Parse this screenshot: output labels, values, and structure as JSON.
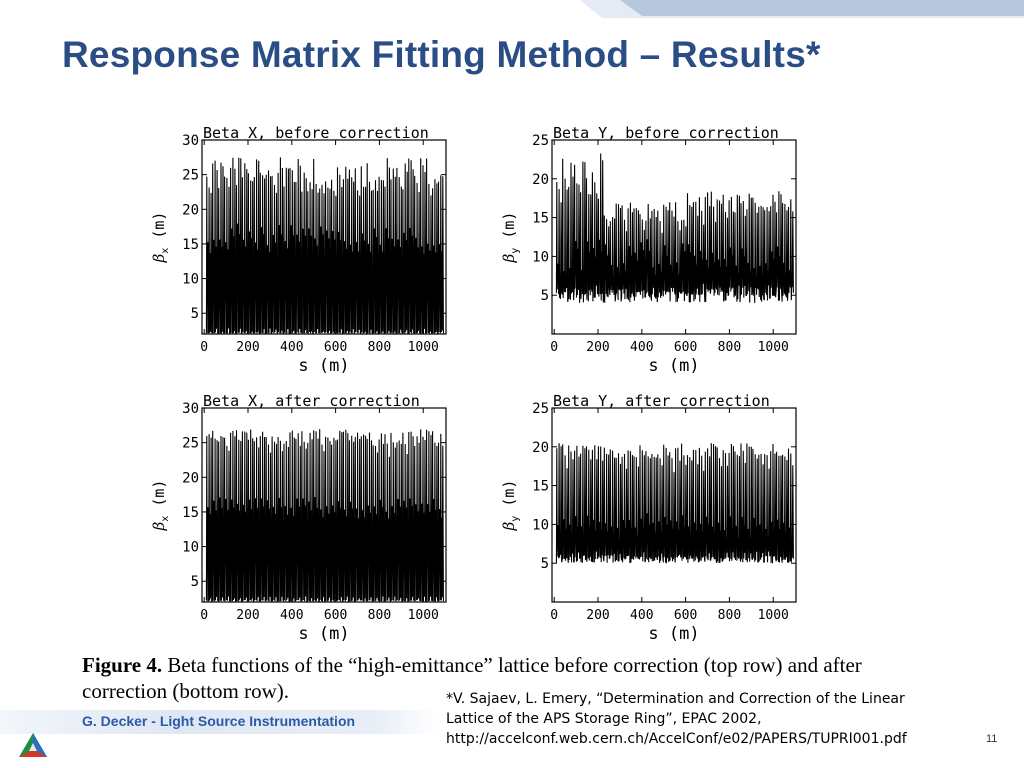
{
  "slide": {
    "title": "Response Matrix Fitting Method – Results*",
    "caption_bold": "Figure 4.",
    "caption_text": " Beta functions of the “high-emittance” lattice before correction (top row) and after correction (bottom row).",
    "footer": "G. Decker - Light Source Instrumentation",
    "reference_line1": "*V. Sajaev, L. Emery, “Determination and Correction of the Linear",
    "reference_line2": "Lattice of the APS Storage Ring”, EPAC 2002,",
    "reference_line3": "http://accelconf.web.cern.ch/AccelConf/e02/PAPERS/TUPRI001.pdf",
    "page_number": "11",
    "colors": {
      "title": "#2b4d86",
      "band": "#b7c7de",
      "footer_bar": "#e2e9f4"
    }
  },
  "chart_data": [
    {
      "type": "line",
      "title": "Beta X, before correction",
      "xlabel": "s (m)",
      "ylabel_symbol": "β",
      "ylabel_sub": "x",
      "ylabel_unit": "(m)",
      "xlim": [
        -10,
        1104
      ],
      "ylim": [
        2,
        30
      ],
      "xticks": [
        0,
        200,
        400,
        600,
        800,
        1000
      ],
      "yticks": [
        5,
        10,
        15,
        20,
        25,
        30
      ],
      "periods": 40,
      "x_start": 10,
      "x_end": 1095,
      "beta_min": [
        1.8,
        2.3
      ],
      "beta_max": [
        22.5,
        27.5
      ],
      "beta_mid": [
        14.5,
        17.5
      ]
    },
    {
      "type": "line",
      "title": "Beta Y, before correction",
      "xlabel": "s (m)",
      "ylabel_symbol": "β",
      "ylabel_sub": "y",
      "ylabel_unit": "(m)",
      "xlim": [
        -10,
        1104
      ],
      "ylim": [
        0,
        25
      ],
      "xticks": [
        0,
        200,
        400,
        600,
        800,
        1000
      ],
      "yticks": [
        5,
        10,
        15,
        20,
        25
      ],
      "periods": 40,
      "x_start": 10,
      "x_end": 1095,
      "beta_min": [
        4,
        6
      ],
      "beta_max": [
        14.5,
        24
      ],
      "beta_mid": [
        8,
        12
      ]
    },
    {
      "type": "line",
      "title": "Beta X, after correction",
      "xlabel": "s (m)",
      "ylabel_symbol": "β",
      "ylabel_sub": "x",
      "ylabel_unit": "(m)",
      "xlim": [
        -10,
        1104
      ],
      "ylim": [
        2,
        30
      ],
      "xticks": [
        0,
        200,
        400,
        600,
        800,
        1000
      ],
      "yticks": [
        5,
        10,
        15,
        20,
        25,
        30
      ],
      "periods": 40,
      "x_start": 10,
      "x_end": 1095,
      "beta_min": [
        2.0,
        2.3
      ],
      "beta_max": [
        24.5,
        27.0
      ],
      "beta_mid": [
        15,
        17
      ]
    },
    {
      "type": "line",
      "title": "Beta Y, after correction",
      "xlabel": "s (m)",
      "ylabel_symbol": "β",
      "ylabel_sub": "y",
      "ylabel_unit": "(m)",
      "xlim": [
        -10,
        1104
      ],
      "ylim": [
        0,
        25
      ],
      "xticks": [
        0,
        200,
        400,
        600,
        800,
        1000
      ],
      "yticks": [
        5,
        10,
        15,
        20,
        25
      ],
      "periods": 40,
      "x_start": 10,
      "x_end": 1095,
      "beta_min": [
        5,
        6
      ],
      "beta_max": [
        18.5,
        20.5
      ],
      "beta_mid": [
        9,
        11
      ]
    }
  ]
}
